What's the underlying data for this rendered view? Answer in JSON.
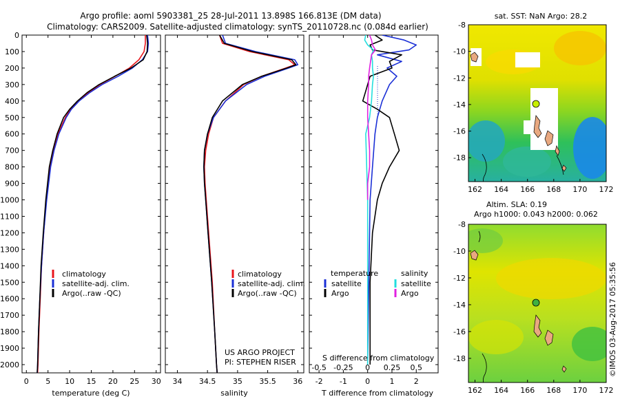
{
  "title": {
    "line1": "Argo profile: aoml 5903381_25 28-Jul-2011 13.898S 166.813E (DM data)",
    "line2": "Climatology: CARS2009. Satellite-adjusted climatology: synTS_20110728.nc (0.084d earlier)"
  },
  "colors": {
    "climatology": "#e8141b",
    "satellite": "#1a2fd6",
    "argo": "#000000",
    "sat_s": "#22dede",
    "argo_s": "#e020e0"
  },
  "depth_axis": {
    "ylim": [
      0,
      2050
    ],
    "ticks": [
      "0",
      "100",
      "200",
      "300",
      "400",
      "500",
      "600",
      "700",
      "800",
      "900",
      "1000",
      "1100",
      "1200",
      "1300",
      "1400",
      "1500",
      "1600",
      "1700",
      "1800",
      "1900",
      "2000"
    ]
  },
  "chart_data": [
    {
      "type": "line",
      "title": "",
      "xlabel": "temperature (deg C)",
      "ylabel": "",
      "xlim": [
        -1,
        31
      ],
      "ylim": [
        2050,
        0
      ],
      "xticks": [
        "0",
        "5",
        "10",
        "15",
        "20",
        "25",
        "30"
      ],
      "legend": [
        "climatology",
        "satellite-adj. clim.",
        "Argo(..raw -QC)"
      ],
      "series": [
        {
          "name": "climatology",
          "depth": [
            0,
            50,
            100,
            150,
            200,
            250,
            300,
            350,
            400,
            450,
            500,
            600,
            700,
            800,
            1000,
            1200,
            1400,
            1600,
            1800,
            2000,
            2050
          ],
          "values": [
            27.5,
            27.5,
            27.2,
            26.0,
            23.8,
            20.5,
            17.0,
            14.3,
            12.0,
            10.2,
            9.0,
            7.3,
            6.2,
            5.4,
            4.6,
            4.0,
            3.5,
            3.2,
            2.9,
            2.7,
            2.6
          ]
        },
        {
          "name": "satellite-adj. clim.",
          "depth": [
            0,
            50,
            100,
            150,
            200,
            250,
            300,
            350,
            400,
            450,
            500,
            600,
            700,
            800,
            1000,
            1200,
            1400,
            1600,
            1800,
            2000,
            2050
          ],
          "values": [
            28.0,
            28.2,
            28.0,
            26.8,
            24.5,
            21.2,
            17.5,
            14.6,
            12.2,
            10.4,
            9.2,
            7.5,
            6.4,
            5.6,
            4.7,
            4.0,
            3.5,
            3.1,
            2.8,
            2.6,
            2.5
          ]
        },
        {
          "name": "Argo(..raw -QC)",
          "depth": [
            0,
            50,
            100,
            150,
            200,
            250,
            300,
            350,
            400,
            450,
            500,
            600,
            700,
            800,
            1000,
            1200,
            1400,
            1600,
            1800,
            2000,
            2050
          ],
          "values": [
            27.8,
            28.0,
            27.9,
            27.0,
            24.2,
            20.4,
            16.8,
            14.0,
            11.8,
            10.0,
            8.6,
            7.1,
            6.1,
            5.3,
            4.5,
            3.9,
            3.4,
            3.1,
            2.8,
            2.6,
            2.5
          ]
        }
      ]
    },
    {
      "type": "line",
      "title": "",
      "xlabel": "salinity",
      "ylabel": "",
      "xlim": [
        33.8,
        36.1
      ],
      "ylim": [
        2050,
        0
      ],
      "xticks": [
        "34",
        "34.5",
        "35",
        "35.5",
        "36"
      ],
      "legend": [
        "climatology",
        "satellite-adj. clim.",
        "Argo(..raw -QC)"
      ],
      "annotations": [
        "US ARGO PROJECT",
        "PI: STEPHEN RISER"
      ],
      "series": [
        {
          "name": "climatology",
          "depth": [
            0,
            50,
            100,
            150,
            180,
            200,
            250,
            300,
            400,
            500,
            600,
            700,
            800,
            900,
            1000,
            1200,
            1500,
            1800,
            2000,
            2050
          ],
          "values": [
            34.7,
            34.75,
            35.2,
            35.85,
            35.95,
            35.8,
            35.4,
            35.1,
            34.8,
            34.6,
            34.52,
            34.47,
            34.45,
            34.46,
            34.48,
            34.52,
            34.58,
            34.62,
            34.65,
            34.66
          ]
        },
        {
          "name": "satellite-adj. clim.",
          "depth": [
            0,
            50,
            100,
            150,
            180,
            200,
            250,
            300,
            400,
            500,
            600,
            700,
            800,
            900,
            1000,
            1200,
            1500,
            1800,
            2000,
            2050
          ],
          "values": [
            34.75,
            34.8,
            35.3,
            35.95,
            36.0,
            35.85,
            35.45,
            35.15,
            34.8,
            34.6,
            34.5,
            34.45,
            34.44,
            34.45,
            34.47,
            34.51,
            34.57,
            34.62,
            34.65,
            34.66
          ]
        },
        {
          "name": "Argo(..raw -QC)",
          "depth": [
            0,
            50,
            100,
            150,
            180,
            200,
            250,
            300,
            400,
            500,
            600,
            700,
            800,
            900,
            1000,
            1200,
            1500,
            1800,
            2000,
            2050
          ],
          "values": [
            34.7,
            34.78,
            35.25,
            35.9,
            35.97,
            35.82,
            35.4,
            35.08,
            34.75,
            34.58,
            34.5,
            34.45,
            34.44,
            34.45,
            34.47,
            34.51,
            34.57,
            34.62,
            34.65,
            34.66
          ]
        }
      ]
    },
    {
      "type": "line",
      "title": "",
      "xlabel": "T difference from climatology",
      "xlabel_top": "S difference from climatology",
      "ylabel": "",
      "xlim": [
        -2.4,
        2.9
      ],
      "ylim": [
        2050,
        0
      ],
      "xticks": [
        "-2",
        "-1",
        "0",
        "1",
        "2"
      ],
      "xticks_s": [
        "-0.5",
        "-0.25",
        "0",
        "0.25",
        "0.5"
      ],
      "legend_groups": [
        "temperature",
        "salinity"
      ],
      "legend": [
        "satellite",
        "Argo",
        "satellite",
        "Argo"
      ],
      "series": [
        {
          "name": "temperature satellite",
          "depth": [
            0,
            30,
            60,
            90,
            120,
            160,
            200,
            250,
            300,
            400,
            500,
            600,
            800,
            1000,
            1500,
            2000
          ],
          "values": [
            0.6,
            1.5,
            2.0,
            1.7,
            0.4,
            1.4,
            0.8,
            1.2,
            0.9,
            0.6,
            0.4,
            0.3,
            0.2,
            0.1,
            0.05,
            0.0
          ]
        },
        {
          "name": "temperature Argo",
          "depth": [
            0,
            30,
            60,
            90,
            120,
            160,
            200,
            250,
            300,
            350,
            400,
            450,
            500,
            600,
            700,
            800,
            900,
            1000,
            1200,
            1500,
            2000
          ],
          "values": [
            0.3,
            0.6,
            0.1,
            0.2,
            1.4,
            0.9,
            1.0,
            0.1,
            0.0,
            -0.1,
            -0.2,
            0.4,
            0.9,
            1.1,
            1.3,
            0.9,
            0.6,
            0.4,
            0.2,
            0.1,
            0.1
          ]
        },
        {
          "name": "salinity satellite",
          "depth": [
            0,
            30,
            60,
            90,
            120,
            160,
            200,
            250,
            300,
            400,
            500,
            600,
            800,
            1000,
            1500,
            2000
          ],
          "values": [
            -0.02,
            -0.03,
            0.0,
            0.06,
            0.04,
            0.05,
            0.05,
            0.06,
            0.05,
            0.04,
            0.02,
            -0.02,
            -0.01,
            0.0,
            0.0,
            0.0
          ]
        },
        {
          "name": "salinity Argo",
          "depth": [
            0,
            30,
            60,
            90,
            120,
            160,
            200,
            250,
            300,
            400,
            500,
            600,
            700,
            800,
            900,
            1000
          ],
          "values": [
            0.02,
            0.04,
            0.05,
            0.08,
            0.04,
            0.03,
            0.02,
            0.01,
            0.01,
            0.0,
            0.0,
            0.01,
            0.02,
            0.02,
            0.0,
            0.0
          ]
        }
      ]
    },
    {
      "type": "heatmap",
      "title": "sat. SST: NaN Argo: 28.2",
      "xlim": [
        161.5,
        172
      ],
      "ylim": [
        -19.8,
        -8
      ],
      "xticks": [
        "162",
        "164",
        "166",
        "168",
        "170",
        "172"
      ],
      "yticks": [
        "-8",
        "-10",
        "-12",
        "-14",
        "-16",
        "-18"
      ],
      "marker": {
        "lon": 166.813,
        "lat": -13.898
      }
    },
    {
      "type": "heatmap",
      "title": "Altim. SLA: 0.19",
      "subtitle": "Argo h1000: 0.043 h2000: 0.062",
      "xlim": [
        161.5,
        172
      ],
      "ylim": [
        -19.8,
        -8
      ],
      "xticks": [
        "162",
        "164",
        "166",
        "168",
        "170",
        "172"
      ],
      "yticks": [
        "-8",
        "-10",
        "-12",
        "-14",
        "-16",
        "-18"
      ],
      "marker": {
        "lon": 166.813,
        "lat": -13.898
      }
    }
  ],
  "watermark": "©IMOS 03-Aug-2017 05:35:56"
}
